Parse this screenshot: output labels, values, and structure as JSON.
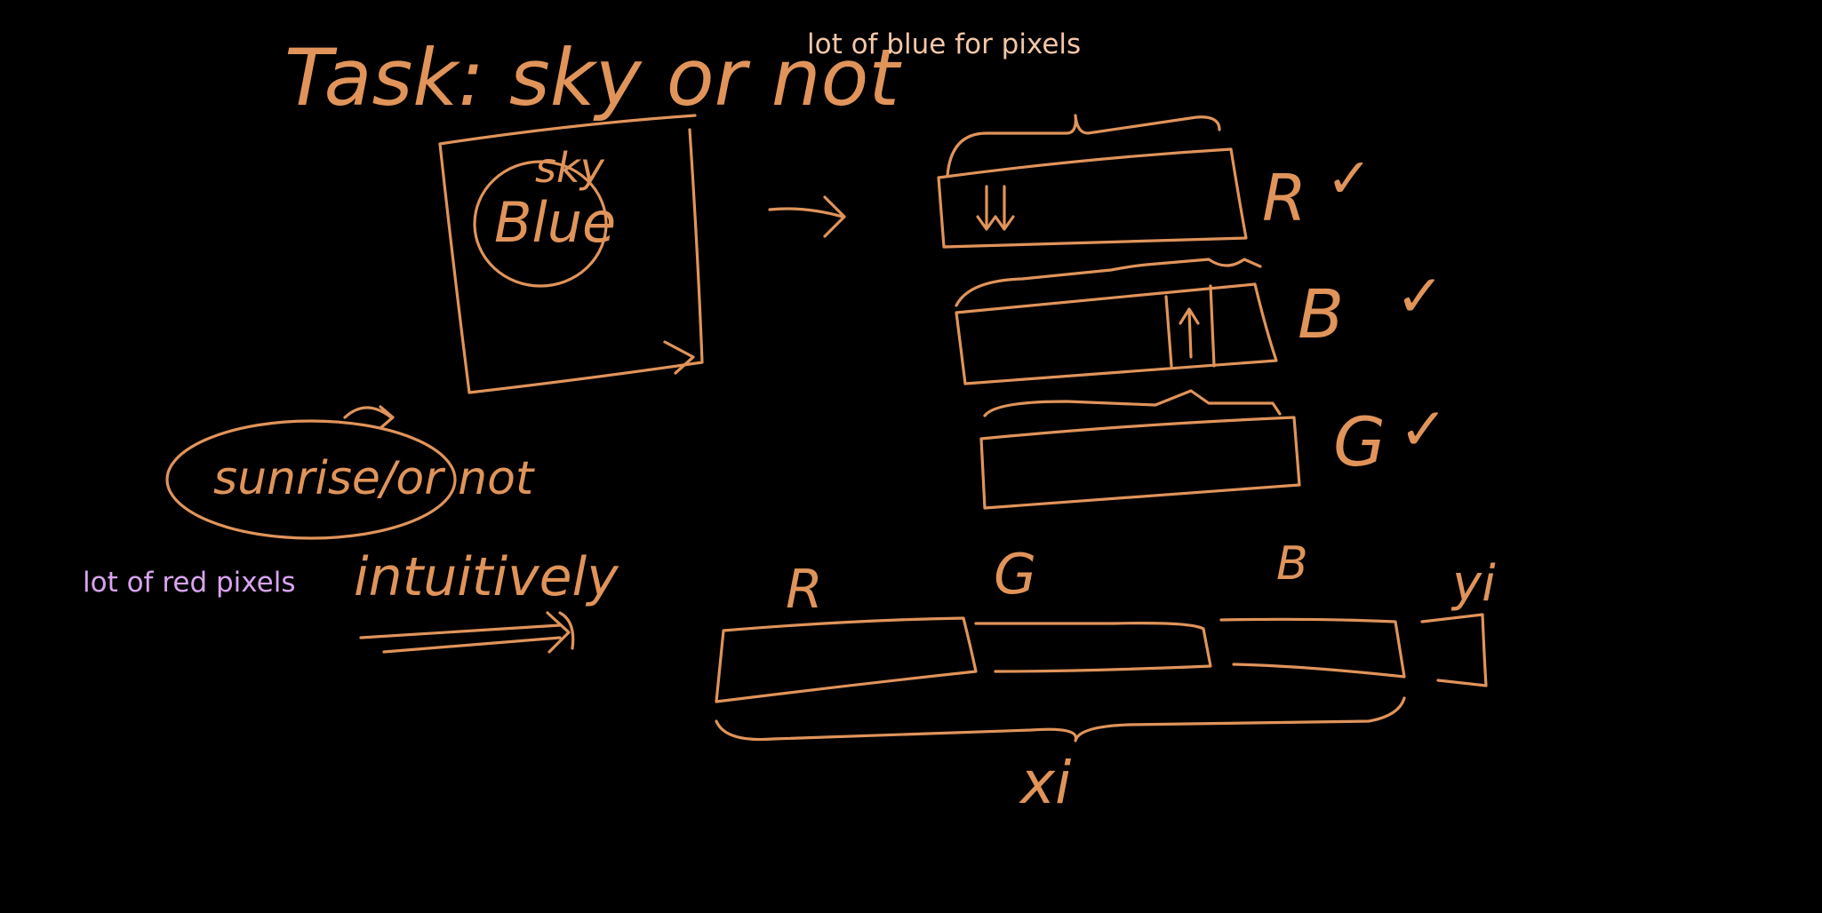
{
  "colors": {
    "background": "#000000",
    "ink": "#e0945a",
    "note_blue": "#f4c7a8",
    "note_red": "#d9a4f0"
  },
  "typed_notes": {
    "blue": "lot of blue for pixels",
    "red": "lot of red pixels"
  },
  "handwriting": {
    "task_title": "Task: sky or not",
    "sky_label": "sky",
    "blue_label": "Blue",
    "sunrise_label": "sunrise/or not",
    "intuitively": "intuitively",
    "channel_r": "R",
    "channel_b": "B",
    "channel_g": "G",
    "check": "✓",
    "concat_r": "R",
    "concat_g": "G",
    "concat_b": "B",
    "target": "yi",
    "feature": "xi"
  }
}
